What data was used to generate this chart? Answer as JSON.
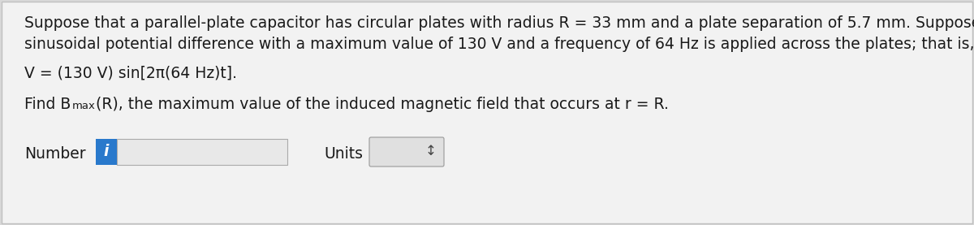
{
  "background_color": "#d8d8d8",
  "panel_color": "#f2f2f2",
  "text_line1": "Suppose that a parallel-plate capacitor has circular plates with radius R = 33 mm and a plate separation of 5.7 mm. Suppose also that a",
  "text_line2": "sinusoidal potential difference with a maximum value of 130 V and a frequency of 64 Hz is applied across the plates; that is,",
  "text_line3": "V = (130 V) sin[2π(64 Hz)t].",
  "text_line4_pre": "Find B",
  "text_line4_sub": "max",
  "text_line4_post": "(R), the maximum value of the induced magnetic field that occurs at r = R.",
  "number_label": "Number",
  "units_label": "Units",
  "info_box_color": "#2979CC",
  "input_box_color": "#e8e8e8",
  "units_box_color": "#e0e0e0",
  "font_size_body": 13.5,
  "font_size_sub": 9.5
}
